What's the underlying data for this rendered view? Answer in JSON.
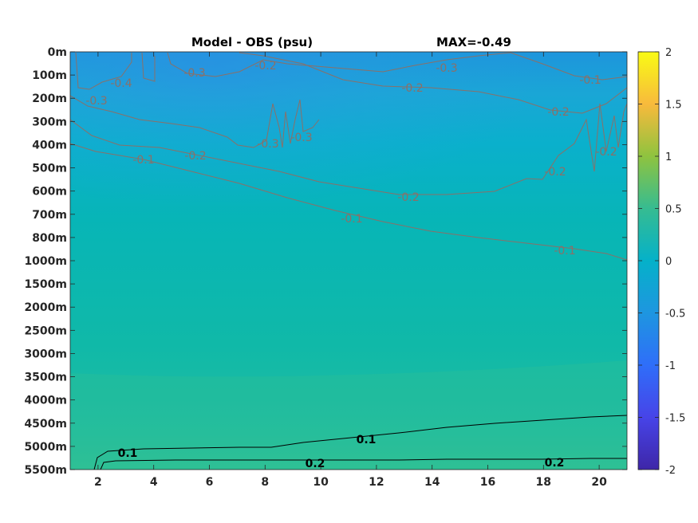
{
  "header": {
    "title": "Model - OBS (psu)",
    "max_label": "MAX=-0.49"
  },
  "chart_data": {
    "type": "heatmap",
    "title": "Model - OBS (psu)",
    "annotation": "MAX=-0.49",
    "xlabel": "",
    "ylabel": "",
    "xlim": [
      1,
      21
    ],
    "xticks": [
      2,
      4,
      6,
      8,
      10,
      12,
      14,
      16,
      18,
      20
    ],
    "yticks": [
      "0m",
      "100m",
      "200m",
      "300m",
      "400m",
      "500m",
      "600m",
      "700m",
      "800m",
      "1000m",
      "1500m",
      "2000m",
      "2500m",
      "3000m",
      "3500m",
      "4000m",
      "4500m",
      "5000m",
      "5500m"
    ],
    "y_axis_reversed": true,
    "colorbar": {
      "colormap": "parula",
      "clim": [
        -2,
        2
      ],
      "ticks": [
        2,
        1.5,
        1,
        0.5,
        0,
        -0.5,
        -1,
        -1.5,
        -2
      ],
      "tick_labels": [
        "2",
        "1.5",
        "1",
        "0.5",
        "0",
        "-0.5",
        "-1",
        "-1.5",
        "-2"
      ]
    },
    "contours": [
      {
        "level": -0.4,
        "color": "#8a7068",
        "labels": [
          "-0.4"
        ]
      },
      {
        "level": -0.3,
        "color": "#8a7068",
        "labels": [
          "-0.3",
          "-0.3",
          "-0.3",
          "-0.3",
          "-0.3"
        ]
      },
      {
        "level": -0.2,
        "color": "#8a7068",
        "labels": [
          "-0.2",
          "-0.2",
          "-0.2",
          "-0.2",
          "-0.2",
          "-0.2",
          "-0.2"
        ]
      },
      {
        "level": -0.1,
        "color": "#8a7068",
        "labels": [
          "-0.1",
          "-0.1",
          "-0.1",
          "-0.1",
          "-0.1"
        ]
      },
      {
        "level": 0.1,
        "color": "#000000",
        "labels": [
          "0.1",
          "0.1"
        ]
      },
      {
        "level": 0.2,
        "color": "#000000",
        "labels": [
          "0.2",
          "0.2"
        ]
      }
    ],
    "grid": false
  }
}
